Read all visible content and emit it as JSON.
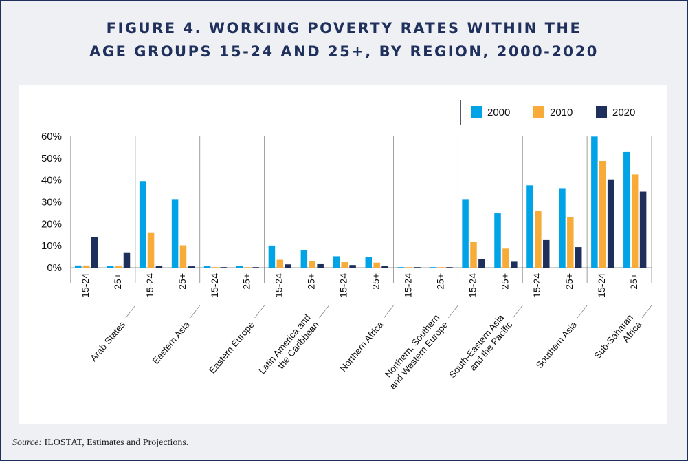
{
  "title_line1": "FIGURE 4. WORKING POVERTY RATES WITHIN THE",
  "title_line2": "AGE GROUPS 15-24 AND 25+, BY REGION, 2000-2020",
  "source_label": "Source:",
  "source_text": " ILOSTAT, Estimates and Projections.",
  "colors": {
    "2000": "#00a3e6",
    "2010": "#f7ab38",
    "2020": "#1f2f5c",
    "title": "#20305d"
  },
  "chart_data": {
    "type": "bar",
    "title": "FIGURE 4. WORKING POVERTY RATES WITHIN THE AGE GROUPS 15-24 AND 25+, BY REGION, 2000-2020",
    "ylim": [
      0,
      60
    ],
    "yticks": [
      "0%",
      "10%",
      "20%",
      "30%",
      "40%",
      "50%",
      "60%"
    ],
    "legend_position": "top-right",
    "age_groups": [
      "15-24",
      "25+"
    ],
    "regions": [
      "Arab States",
      "Eastern Asia",
      "Eastern Europe",
      "Latin America and\nthe Caribbean",
      "Northern Africa",
      "Northern, Southern\nand Western Europe",
      "South-Eastern Asia\nand the Pacific",
      "Southern Asia",
      "Sub-Saharan\nAfrica"
    ],
    "series": [
      {
        "name": "2000",
        "values": [
          [
            1.0,
            0.7
          ],
          [
            39.5,
            31.3
          ],
          [
            0.9,
            0.7
          ],
          [
            10.1,
            8.0
          ],
          [
            5.2,
            4.9
          ],
          [
            0.1,
            0.1
          ],
          [
            31.3,
            24.8
          ],
          [
            37.6,
            36.3
          ],
          [
            59.9,
            52.8
          ]
        ]
      },
      {
        "name": "2010",
        "values": [
          [
            1.0,
            0.6
          ],
          [
            16.1,
            10.2
          ],
          [
            0.2,
            0.1
          ],
          [
            3.6,
            3.1
          ],
          [
            2.5,
            2.3
          ],
          [
            0.1,
            0.1
          ],
          [
            11.8,
            8.7
          ],
          [
            25.8,
            23.0
          ],
          [
            48.7,
            42.6
          ]
        ]
      },
      {
        "name": "2020",
        "values": [
          [
            13.9,
            7.0
          ],
          [
            0.9,
            0.6
          ],
          [
            0.1,
            0.1
          ],
          [
            1.5,
            1.9
          ],
          [
            1.2,
            0.8
          ],
          [
            0.1,
            0.1
          ],
          [
            3.9,
            2.7
          ],
          [
            12.6,
            9.4
          ],
          [
            40.3,
            34.7
          ]
        ]
      }
    ]
  }
}
